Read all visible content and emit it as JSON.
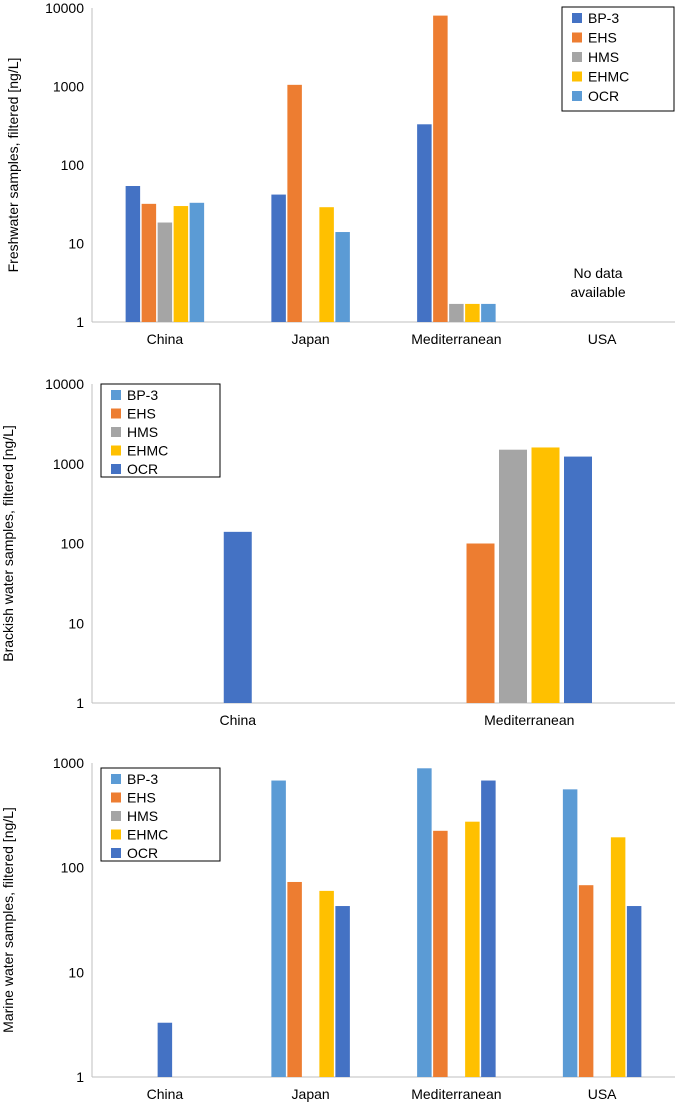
{
  "chart_data": [
    {
      "type": "bar",
      "ylabel": "Freshwater samples, filtered [ng/L]",
      "yscale": "log",
      "ylim": [
        1,
        10000
      ],
      "yticks": [
        "1",
        "10",
        "100",
        "1000",
        "10000"
      ],
      "categories": [
        "China",
        "Japan",
        "Mediterranean",
        "USA"
      ],
      "legend_position": "top-right",
      "series": [
        {
          "name": "BP-3",
          "color": "#4472c4",
          "values": [
            54,
            42,
            330,
            null
          ]
        },
        {
          "name": "EHS",
          "color": "#ed7d31",
          "values": [
            32,
            1050,
            8000,
            null
          ]
        },
        {
          "name": "HMS",
          "color": "#a5a5a5",
          "values": [
            18.5,
            null,
            1.7,
            null
          ]
        },
        {
          "name": "EHMC",
          "color": "#ffc000",
          "values": [
            30,
            29,
            1.7,
            null
          ]
        },
        {
          "name": "OCR",
          "color": "#5b9bd5",
          "values": [
            33,
            14,
            1.7,
            null
          ]
        }
      ],
      "annotation_lines": [
        "No data",
        "available"
      ]
    },
    {
      "type": "bar",
      "ylabel": "Brackish water samples, filtered [ng/L]",
      "yscale": "log",
      "ylim": [
        1,
        10000
      ],
      "yticks": [
        "1",
        "10",
        "100",
        "1000",
        "10000"
      ],
      "categories": [
        "China",
        "Mediterranean"
      ],
      "legend_position": "top-left",
      "series": [
        {
          "name": "BP-3",
          "color": "#5b9bd5",
          "values": [
            null,
            null
          ]
        },
        {
          "name": "EHS",
          "color": "#ed7d31",
          "values": [
            null,
            100
          ]
        },
        {
          "name": "HMS",
          "color": "#a5a5a5",
          "values": [
            null,
            1500
          ]
        },
        {
          "name": "EHMC",
          "color": "#ffc000",
          "values": [
            null,
            1600
          ]
        },
        {
          "name": "OCR",
          "color": "#4472c4",
          "values": [
            140,
            1230
          ]
        }
      ]
    },
    {
      "type": "bar",
      "ylabel": "Marine water samples, filtered [ng/L]",
      "yscale": "log",
      "ylim": [
        1,
        1000
      ],
      "yticks": [
        "1",
        "10",
        "100",
        "1000"
      ],
      "categories": [
        "China",
        "Japan",
        "Mediterranean",
        "USA"
      ],
      "legend_position": "top-left",
      "series": [
        {
          "name": "BP-3",
          "color": "#5b9bd5",
          "values": [
            null,
            680,
            890,
            560
          ]
        },
        {
          "name": "EHS",
          "color": "#ed7d31",
          "values": [
            null,
            73,
            225,
            68
          ]
        },
        {
          "name": "HMS",
          "color": "#a5a5a5",
          "values": [
            null,
            null,
            null,
            null
          ]
        },
        {
          "name": "EHMC",
          "color": "#ffc000",
          "values": [
            null,
            60,
            275,
            195
          ]
        },
        {
          "name": "OCR",
          "color": "#4472c4",
          "values": [
            3.3,
            43,
            680,
            43
          ]
        }
      ]
    }
  ]
}
